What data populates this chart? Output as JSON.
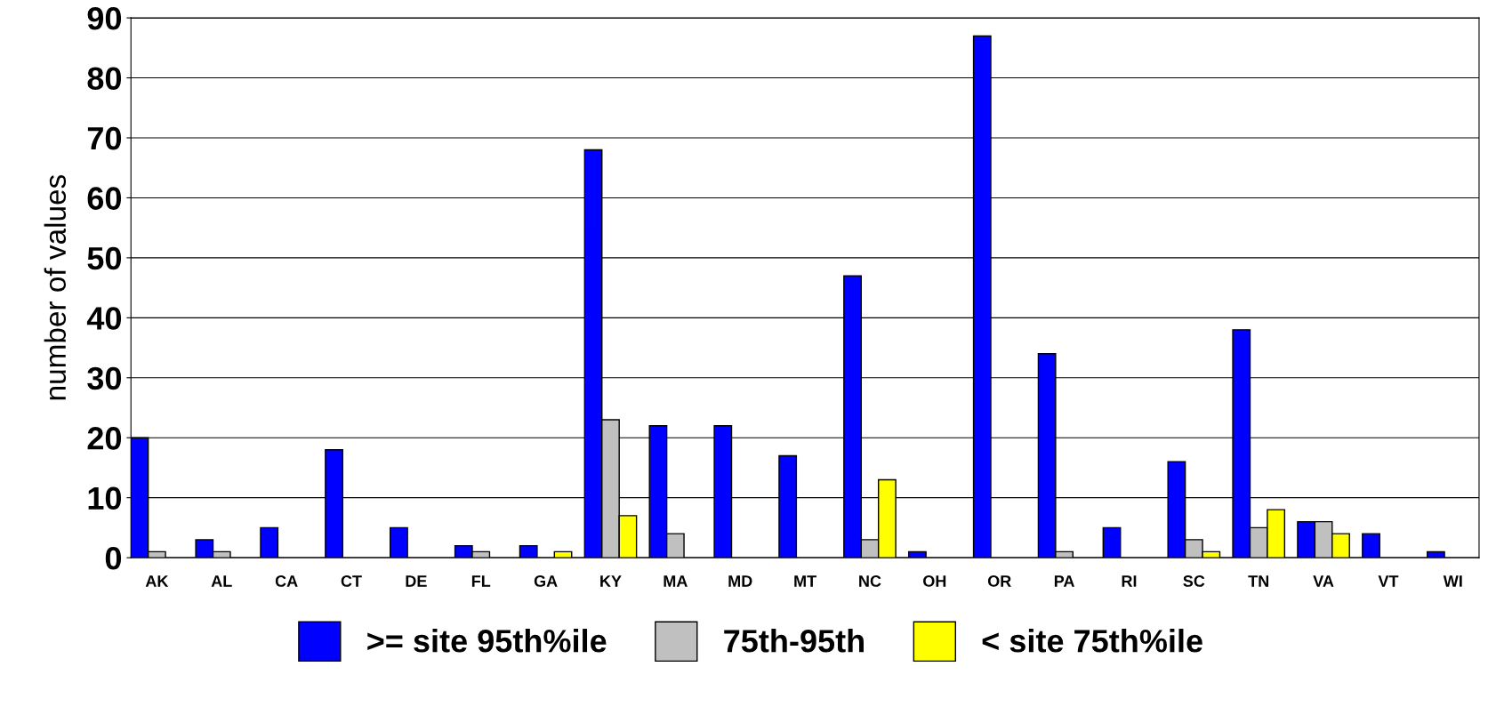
{
  "chart_data": {
    "type": "bar",
    "ylabel": "number of values",
    "categories": [
      "AK",
      "AL",
      "CA",
      "CT",
      "DE",
      "FL",
      "GA",
      "KY",
      "MA",
      "MD",
      "MT",
      "NC",
      "OH",
      "OR",
      "PA",
      "RI",
      "SC",
      "TN",
      "VA",
      "VT",
      "WI"
    ],
    "series": [
      {
        "name": ">= site 95th%ile",
        "color": "#0000ff",
        "values": [
          20,
          3,
          5,
          18,
          5,
          2,
          2,
          68,
          22,
          22,
          17,
          47,
          1,
          87,
          34,
          5,
          16,
          38,
          6,
          4,
          1
        ]
      },
      {
        "name": "75th-95th",
        "color": "#c0c0c0",
        "values": [
          1,
          1,
          0,
          0,
          0,
          1,
          0,
          23,
          4,
          0,
          0,
          3,
          0,
          0,
          1,
          0,
          3,
          5,
          6,
          0,
          0
        ]
      },
      {
        "name": "< site 75th%ile",
        "color": "#ffff00",
        "values": [
          0,
          0,
          0,
          0,
          0,
          0,
          1,
          7,
          0,
          0,
          0,
          13,
          0,
          0,
          0,
          0,
          1,
          8,
          4,
          0,
          0
        ]
      }
    ],
    "ylim": [
      0,
      90
    ],
    "yticks": [
      0,
      10,
      20,
      30,
      40,
      50,
      60,
      70,
      80,
      90
    ],
    "grid": "y",
    "legend": "bottom"
  }
}
